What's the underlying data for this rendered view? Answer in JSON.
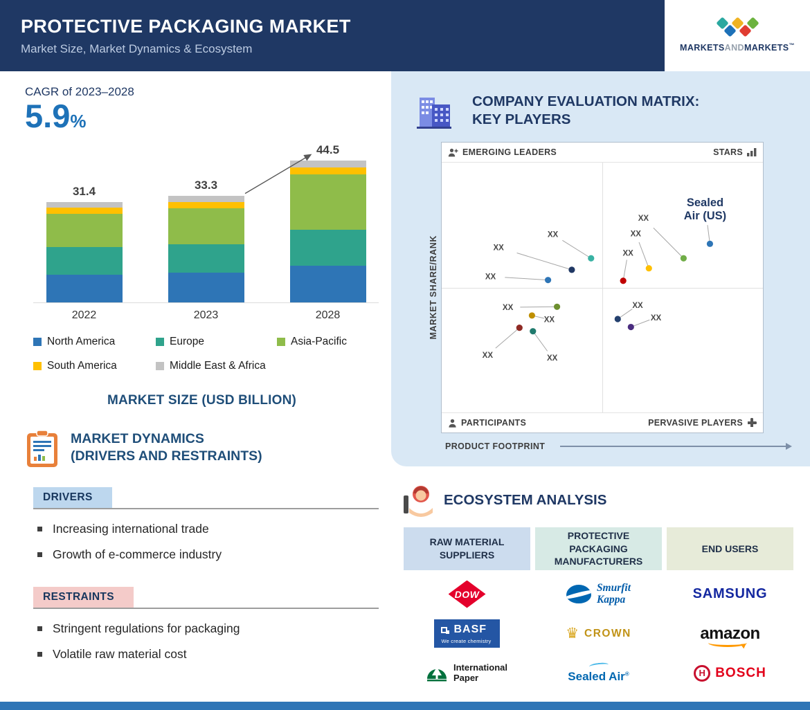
{
  "header": {
    "title": "PROTECTIVE PACKAGING MARKET",
    "subtitle": "Market Size, Market Dynamics & Ecosystem",
    "brand": {
      "part1": "MARKETS",
      "part2": "AND",
      "part3": "MARKETS",
      "tm": "™",
      "diamond_rows": [
        [
          "#2aa8a0",
          "#f0b322",
          "#6cb33f"
        ],
        [
          "#1d71b8",
          "#e03c31"
        ]
      ]
    }
  },
  "colors": {
    "header_bg": "#1f3864",
    "accent_blue": "#1e72b8",
    "panel_bg": "#d9e8f5",
    "footer_bar": "#2e75b6",
    "drivers_chip_bg": "#bdd7ee",
    "restraints_chip_bg": "#f4cbc9"
  },
  "chart_data": [
    {
      "type": "bar",
      "stacked": true,
      "title": "MARKET SIZE (USD BILLION)",
      "categories": [
        "2022",
        "2023",
        "2028"
      ],
      "totals": [
        31.4,
        33.3,
        44.5
      ],
      "series": [
        {
          "name": "North America",
          "color": "#2e75b6",
          "values": [
            8.7,
            9.2,
            11.5
          ]
        },
        {
          "name": "Europe",
          "color": "#2fa38c",
          "values": [
            8.5,
            9.0,
            11.3
          ]
        },
        {
          "name": "Asia-Pacific",
          "color": "#8fbc4a",
          "values": [
            10.6,
            11.2,
            17.2
          ]
        },
        {
          "name": "South America",
          "color": "#ffc000",
          "values": [
            1.9,
            2.0,
            2.2
          ]
        },
        {
          "name": "Middle East & Africa",
          "color": "#c3c3c3",
          "values": [
            1.7,
            1.9,
            2.3
          ]
        }
      ],
      "ylim": [
        0,
        46
      ],
      "legend_position": "below",
      "cagr": {
        "label": "CAGR of 2023–2028",
        "value": "5.9",
        "unit": "%"
      }
    },
    {
      "type": "scatter",
      "title_line1": "COMPANY EVALUATION MATRIX:",
      "title_line2": "KEY PLAYERS",
      "quadrants": [
        "EMERGING LEADERS",
        "STARS",
        "PARTICIPANTS",
        "PERVASIVE PLAYERS"
      ],
      "x_axis": "PRODUCT FOOTPRINT",
      "y_axis": "MARKET SHARE/RANK",
      "points": [
        {
          "x": 46.5,
          "y": 38.3,
          "lx": 34.6,
          "ly": 28.7,
          "color": "#39b2a3",
          "label": "XX"
        },
        {
          "x": 40.5,
          "y": 42.9,
          "lx": 17.7,
          "ly": 33.9,
          "color": "#203864",
          "label": "XX"
        },
        {
          "x": 33.1,
          "y": 47.0,
          "lx": 15.2,
          "ly": 45.6,
          "color": "#2e75b6",
          "label": "XX"
        },
        {
          "x": 83.5,
          "y": 32.5,
          "lx": 82.0,
          "ly": 17.5,
          "color": "#2e75b6",
          "label": "Sealed Air (US)",
          "lines": [
            "Sealed",
            "Air (US)"
          ],
          "big": true
        },
        {
          "x": 75.3,
          "y": 38.3,
          "lx": 62.8,
          "ly": 22.1,
          "color": "#70ad47",
          "label": "XX"
        },
        {
          "x": 64.5,
          "y": 42.3,
          "lx": 60.4,
          "ly": 28.4,
          "color": "#ffc000",
          "label": "XX"
        },
        {
          "x": 56.5,
          "y": 47.3,
          "lx": 58.0,
          "ly": 36.1,
          "color": "#c00000",
          "label": "XX"
        },
        {
          "x": 35.9,
          "y": 57.7,
          "lx": 20.6,
          "ly": 57.9,
          "color": "#6d8f2f",
          "label": "XX"
        },
        {
          "x": 28.1,
          "y": 61.2,
          "lx": 33.5,
          "ly": 62.8,
          "color": "#bf8f00",
          "label": "XX"
        },
        {
          "x": 24.2,
          "y": 66.1,
          "lx": 14.3,
          "ly": 77.0,
          "color": "#8f2a24",
          "label": "XX"
        },
        {
          "x": 28.4,
          "y": 67.5,
          "lx": 34.4,
          "ly": 78.1,
          "color": "#1f7a6d",
          "label": "XX"
        },
        {
          "x": 54.8,
          "y": 62.6,
          "lx": 61.0,
          "ly": 57.1,
          "color": "#24406e",
          "label": "XX"
        },
        {
          "x": 58.9,
          "y": 65.8,
          "lx": 66.7,
          "ly": 62.0,
          "color": "#4a2d7f",
          "label": "XX"
        }
      ]
    }
  ],
  "dynamics": {
    "heading_line1": "MARKET DYNAMICS",
    "heading_line2": "(DRIVERS AND RESTRAINTS)",
    "drivers": {
      "label": "DRIVERS",
      "items": [
        "Increasing international trade",
        "Growth of e-commerce industry"
      ]
    },
    "restraints": {
      "label": "RESTRAINTS",
      "items": [
        "Stringent regulations for packaging",
        "Volatile raw material cost"
      ]
    }
  },
  "ecosystem": {
    "heading": "ECOSYSTEM ANALYSIS",
    "columns": [
      {
        "header": "RAW MATERIAL SUPPLIERS",
        "companies": [
          "Dow",
          "BASF",
          "International Paper"
        ]
      },
      {
        "header": "PROTECTIVE PACKAGING MANUFACTURERS",
        "companies": [
          "Smurfit Kappa",
          "Crown",
          "Sealed Air"
        ]
      },
      {
        "header": "END USERS",
        "companies": [
          "Samsung",
          "Amazon",
          "Bosch"
        ]
      }
    ],
    "logos": {
      "dow": {
        "text": "DOW"
      },
      "basf": {
        "name": "BASF",
        "tagline": "We create chemistry"
      },
      "international_paper": {
        "line1": "International",
        "line2": "Paper"
      },
      "smurfit": {
        "line1": "Smurfit",
        "line2": "Kappa"
      },
      "crown": {
        "glyph": "♛",
        "text": "CROWN"
      },
      "sealed_air": {
        "text": "Sealed Air",
        "reg": "®"
      },
      "samsung": {
        "text": "SAMSUNG"
      },
      "amazon": {
        "text": "amazon"
      },
      "bosch": {
        "h": "H",
        "text": "BOSCH"
      }
    }
  }
}
